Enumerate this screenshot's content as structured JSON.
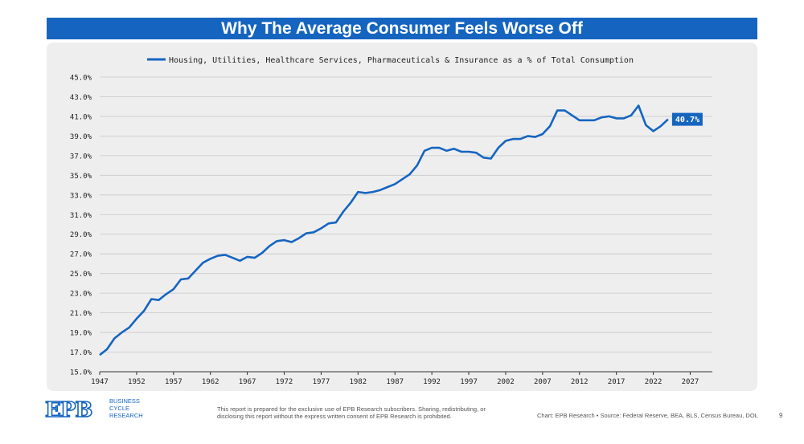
{
  "header": {
    "title": "Why The Average Consumer Feels Worse Off"
  },
  "footer": {
    "logo_text": "EPB",
    "logo_sub": [
      "BUSINESS",
      "CYCLE",
      "RESEARCH"
    ],
    "disclaimer": "This report is prepared for the exclusive use of EPB Research subscribers. Sharing, redistributing, or disclosing this report without the express written consent of EPB Research is prohibited.",
    "source": "Chart: EPB Research  •  Source: Federal Reserve, BEA, BLS, Census Bureau, DOL",
    "page_number": "9"
  },
  "colors": {
    "series": "#1565c0",
    "banner": "#1565c0",
    "panel": "#eeeeee",
    "grid": "#c8c8c8"
  },
  "chart_data": {
    "type": "line",
    "title": "Why The Average Consumer Feels Worse Off",
    "xlabel": "",
    "ylabel": "",
    "xlim": [
      1947,
      2030
    ],
    "ylim": [
      15,
      45
    ],
    "x_ticks": [
      1947,
      1952,
      1957,
      1962,
      1967,
      1972,
      1977,
      1982,
      1987,
      1992,
      1997,
      2002,
      2007,
      2012,
      2017,
      2022,
      2027
    ],
    "y_ticks": [
      15,
      17,
      19,
      21,
      23,
      25,
      27,
      29,
      31,
      33,
      35,
      37,
      39,
      41,
      43,
      45
    ],
    "y_tick_labels": [
      "15.0%",
      "17.0%",
      "19.0%",
      "21.0%",
      "23.0%",
      "25.0%",
      "27.0%",
      "29.0%",
      "31.0%",
      "33.0%",
      "35.0%",
      "37.0%",
      "39.0%",
      "41.0%",
      "43.0%",
      "45.0%"
    ],
    "legend_position": "top-center",
    "grid": true,
    "end_label": "40.7%",
    "series": [
      {
        "name": "Housing, Utilities, Healthcare Services, Pharmaceuticals & Insurance as a % of Total Consumption",
        "x": [
          1947,
          1948,
          1949,
          1950,
          1951,
          1952,
          1953,
          1954,
          1955,
          1956,
          1957,
          1958,
          1959,
          1960,
          1961,
          1962,
          1963,
          1964,
          1965,
          1966,
          1967,
          1968,
          1969,
          1970,
          1971,
          1972,
          1973,
          1974,
          1975,
          1976,
          1977,
          1978,
          1979,
          1980,
          1981,
          1982,
          1983,
          1984,
          1985,
          1986,
          1987,
          1988,
          1989,
          1990,
          1991,
          1992,
          1993,
          1994,
          1995,
          1996,
          1997,
          1998,
          1999,
          2000,
          2001,
          2002,
          2003,
          2004,
          2005,
          2006,
          2007,
          2008,
          2009,
          2010,
          2011,
          2012,
          2013,
          2014,
          2015,
          2016,
          2017,
          2018,
          2019,
          2020,
          2021,
          2022,
          2023,
          2024
        ],
        "values": [
          16.7,
          17.3,
          18.4,
          19.0,
          19.5,
          20.4,
          21.2,
          22.4,
          22.3,
          22.9,
          23.4,
          24.4,
          24.5,
          25.3,
          26.1,
          26.5,
          26.8,
          26.9,
          26.6,
          26.3,
          26.7,
          26.6,
          27.1,
          27.8,
          28.3,
          28.4,
          28.2,
          28.6,
          29.1,
          29.2,
          29.6,
          30.1,
          30.2,
          31.3,
          32.2,
          33.3,
          33.2,
          33.3,
          33.5,
          33.8,
          34.1,
          34.6,
          35.1,
          36.0,
          37.5,
          37.8,
          37.8,
          37.5,
          37.7,
          37.4,
          37.4,
          37.3,
          36.8,
          36.7,
          37.8,
          38.5,
          38.7,
          38.7,
          39.0,
          38.9,
          39.2,
          40.0,
          41.6,
          41.6,
          41.1,
          40.6,
          40.6,
          40.6,
          40.9,
          41.0,
          40.8,
          40.8,
          41.1,
          42.1,
          40.1,
          39.5,
          40.0,
          40.7
        ]
      }
    ]
  }
}
